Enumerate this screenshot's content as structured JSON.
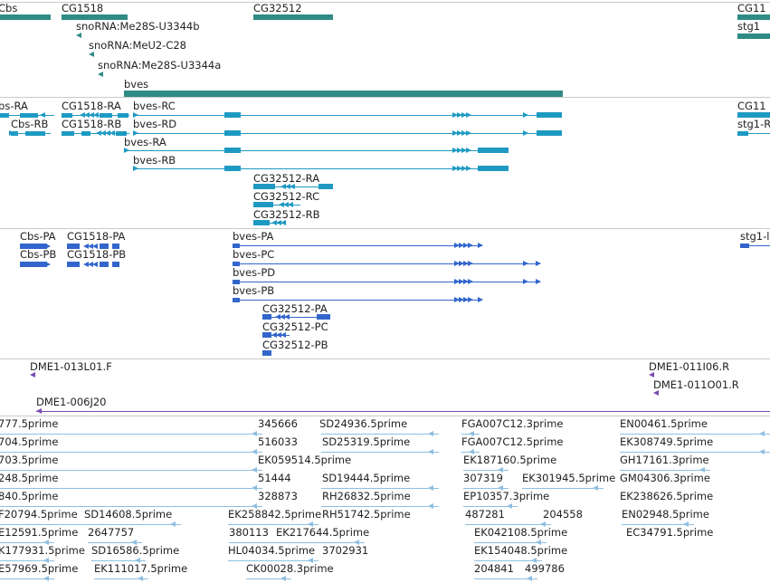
{
  "colors": {
    "gene": "#2f8b85",
    "transcript": "#1e9ac2",
    "protein": "#3366cc",
    "clone": "#7a4ab0",
    "est": "#8fbfe0",
    "separator": "#c9c9c9"
  },
  "gene_track": {
    "labels": [
      "Cbs",
      "CG1518",
      "CG32512",
      "CG11",
      "snoRNA:Me28S-U3344b",
      "snoRNA:MeU2-C28",
      "snoRNA:Me28S-U3344a",
      "bves",
      "stg1"
    ]
  },
  "transcript_track": {
    "labels": [
      "Cbs-RA",
      "Cbs-RB",
      "CG1518-RA",
      "CG1518-RB",
      "bves-RC",
      "bves-RD",
      "bves-RA",
      "bves-RB",
      "CG32512-RA",
      "CG32512-RC",
      "CG32512-RB",
      "CG11",
      "stg1-R"
    ]
  },
  "protein_track": {
    "labels": [
      "Cbs-PA",
      "Cbs-PB",
      "CG1518-PA",
      "CG1518-PB",
      "bves-PA",
      "bves-PC",
      "bves-PD",
      "bves-PB",
      "CG32512-PA",
      "CG32512-PC",
      "CG32512-PB",
      "stg1-l"
    ]
  },
  "clone_track": {
    "labels": [
      "DME1-013L01.F",
      "DME1-011I06.R",
      "DME1-011O01.R",
      "DME1-006J20"
    ]
  },
  "est_track": {
    "labels": [
      "777.5prime",
      "345666",
      "SD24936.5prime",
      "FGA007C12.3prime",
      "EN00461.5prime",
      "704.5prime",
      "516033",
      "SD25319.5prime",
      "FGA007C12.5prime",
      "EK308749.5prime",
      "703.5prime",
      "EK059514.5prime",
      "EK187160.5prime",
      "GH17161.3prime",
      "248.5prime",
      "51444",
      "SD19444.5prime",
      "307319",
      "EK301945.5prime",
      "GM04306.3prime",
      "840.5prime",
      "328873",
      "RH26832.5prime",
      "EP10357.3prime",
      "EK238626.5prime",
      "F20794.5prime",
      "SD14608.5prime",
      "EK258842.5prime",
      "RH51742.5prime",
      "487281",
      "204558",
      "EN02948.5prime",
      "E12591.5prime",
      "2647757",
      "380113",
      "EK217644.5prime",
      "EK042108.5prime",
      "EC34791.5prime",
      "K177931.5prime",
      "SD16586.5prime",
      "HL04034.5prime",
      "3702931",
      "EK154048.5prime",
      "E57969.5prime",
      "EK111017.5prime",
      "CK00028.3prime",
      "204841",
      "499786"
    ]
  }
}
